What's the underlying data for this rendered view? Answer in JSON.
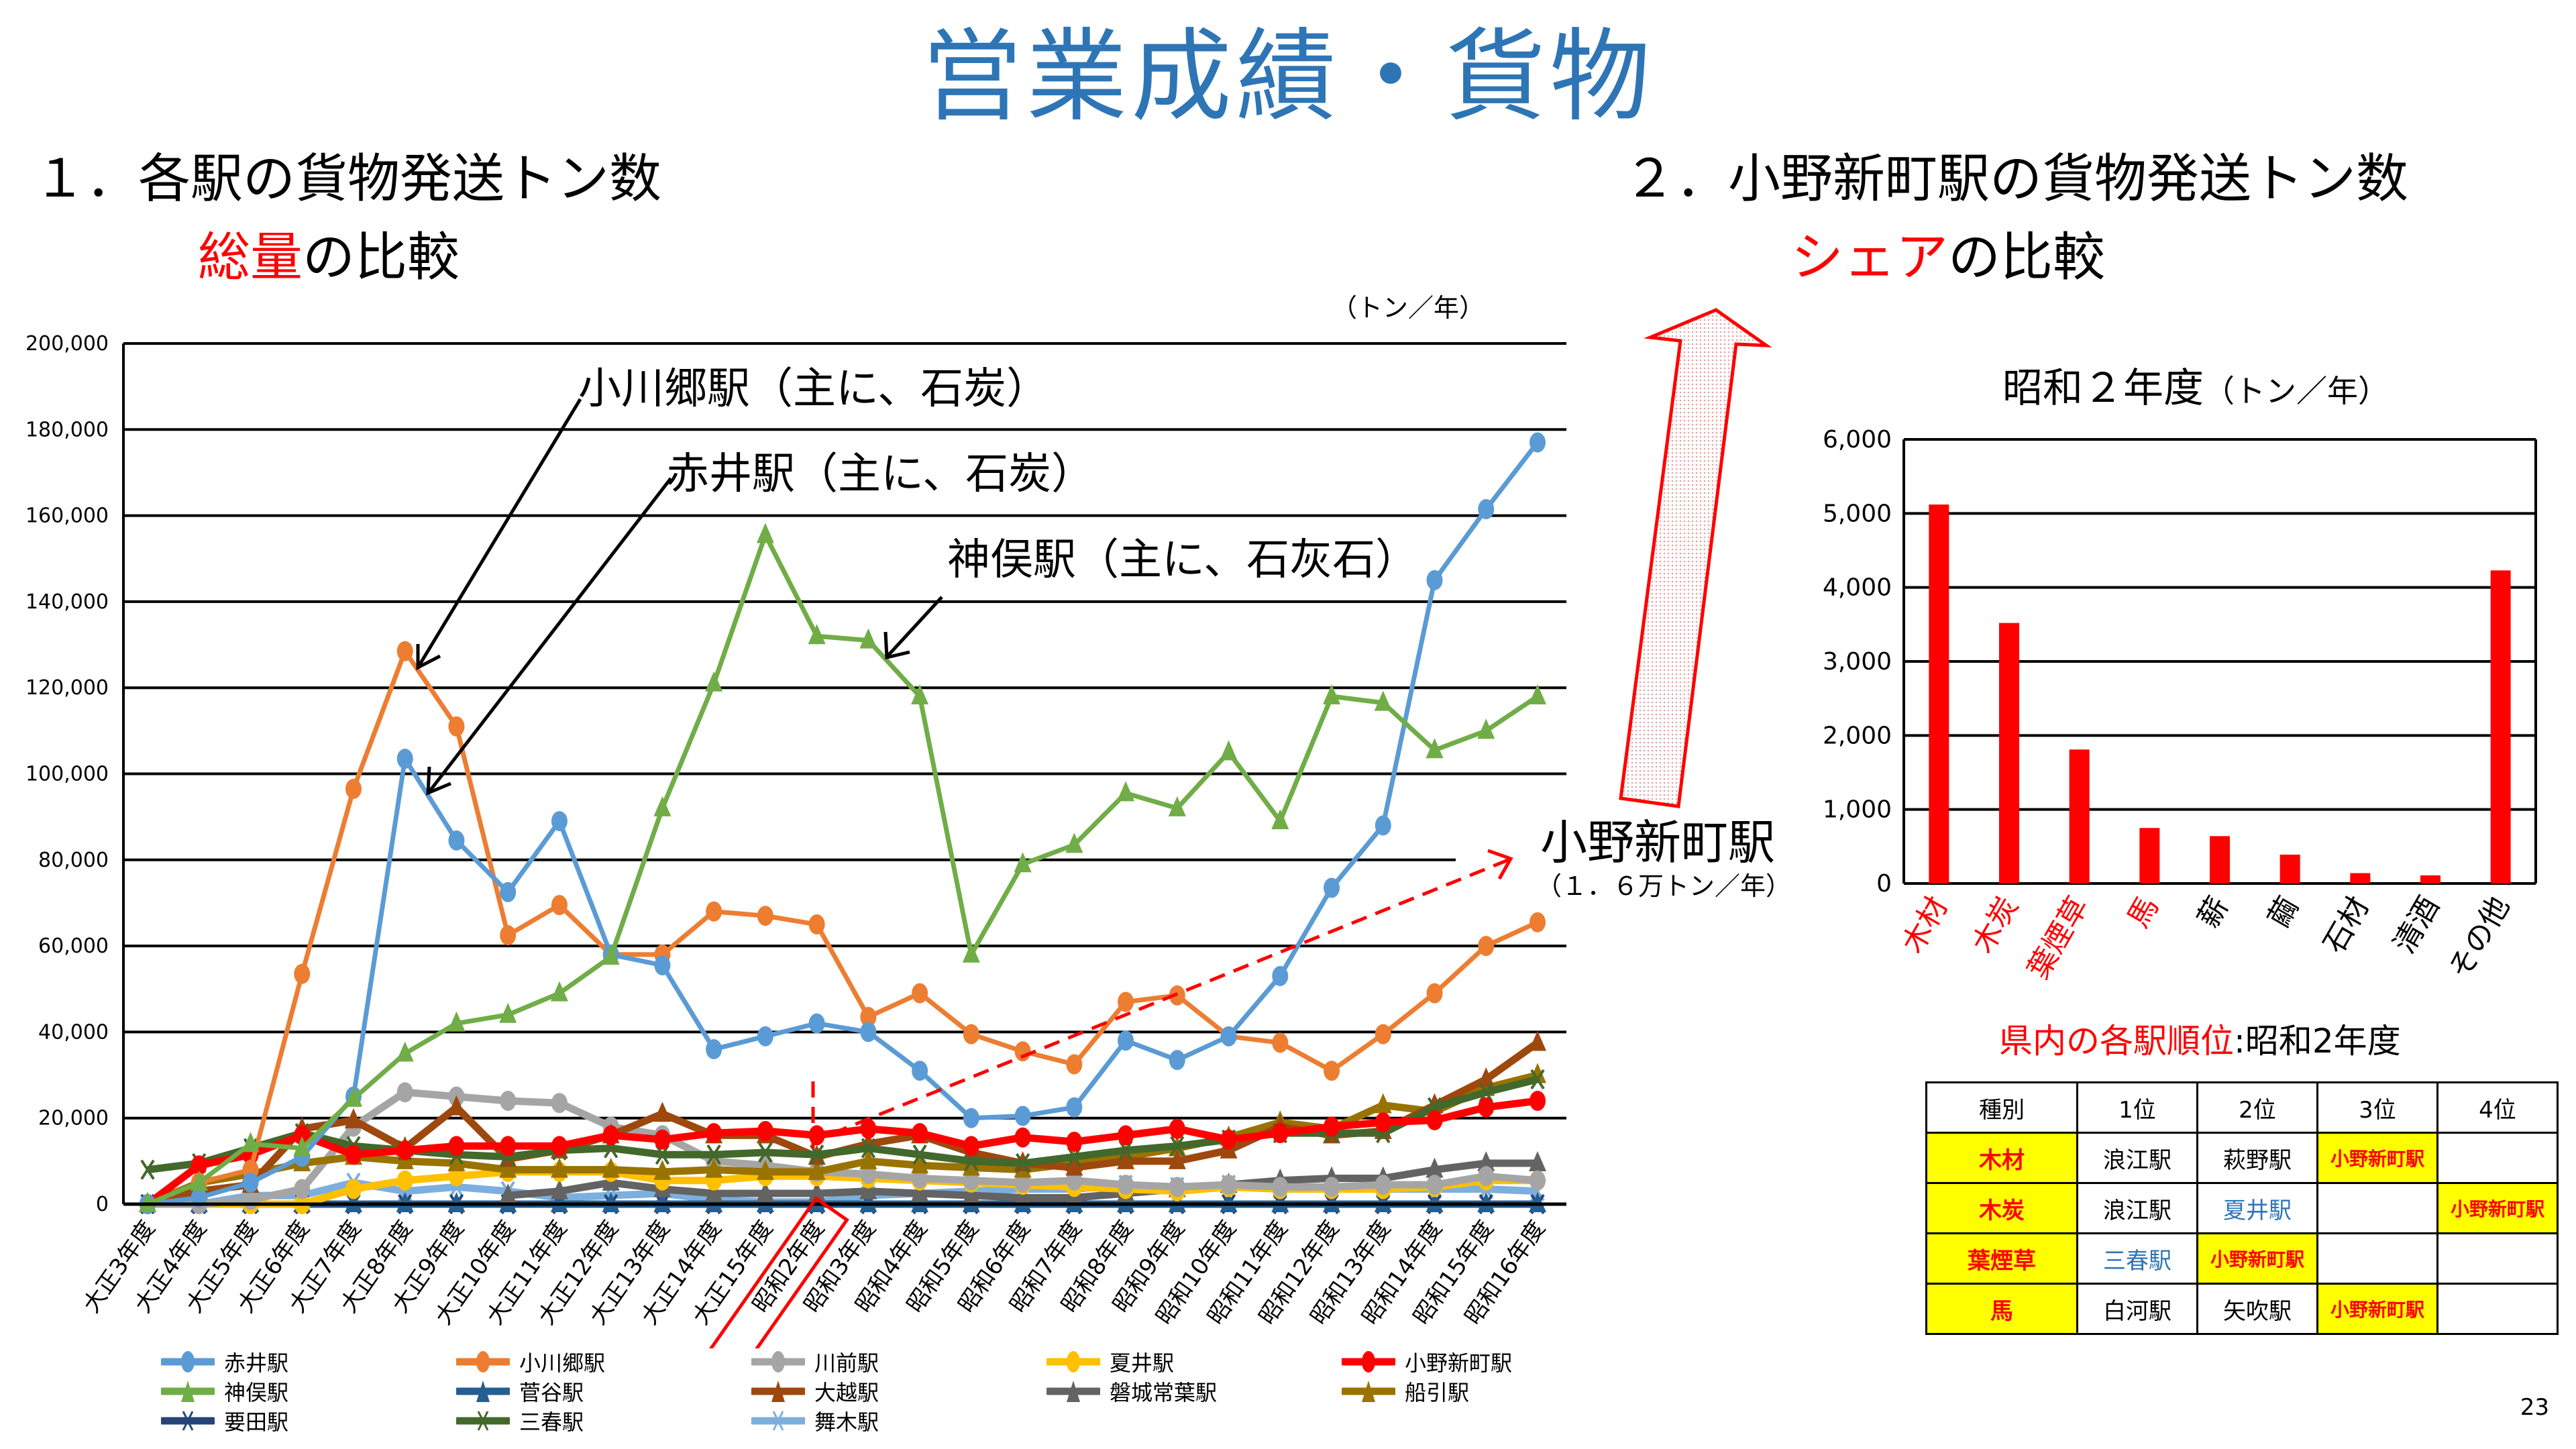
{
  "title": "営業成績・貨物",
  "section1": {
    "number": "１．",
    "line1": "各駅の貨物発送トン数",
    "highlight": "総量",
    "rest": "の比較"
  },
  "section2": {
    "number": "２．",
    "line1": "小野新町駅の貨物発送トン数",
    "highlight": "シェア",
    "rest": "の比較"
  },
  "unit_main": "（トン／年）",
  "annotations": {
    "ogawago": "小川郷駅（主に、石炭）",
    "akai": "赤井駅（主に、石炭）",
    "kanmata": "神俣駅（主に、石灰石）",
    "onoshinmachi": "小野新町駅",
    "onoshinmachi_sub": "（１．６万トン／年）"
  },
  "colors": {
    "title": "#2e75b6",
    "accent": "#ff0000",
    "highlight": "#ffff00"
  },
  "chart_data": [
    {
      "type": "line",
      "title": "各駅の貨物発送トン数",
      "ylabel": "（トン／年）",
      "ylim": [
        0,
        200000
      ],
      "yticks": [
        "0",
        "20,000",
        "40,000",
        "60,000",
        "80,000",
        "100,000",
        "120,000",
        "140,000",
        "160,000",
        "180,000",
        "200,000"
      ],
      "ytick_values": [
        0,
        20000,
        40000,
        60000,
        80000,
        100000,
        120000,
        140000,
        160000,
        180000,
        200000
      ],
      "grid": true,
      "legend": "bottom",
      "highlighted_category": "昭和2年度",
      "categories": [
        "大正3年度",
        "大正4年度",
        "大正5年度",
        "大正6年度",
        "大正7年度",
        "大正8年度",
        "大正9年度",
        "大正10年度",
        "大正11年度",
        "大正12年度",
        "大正13年度",
        "大正14年度",
        "大正15年度",
        "昭和2年度",
        "昭和3年度",
        "昭和4年度",
        "昭和5年度",
        "昭和6年度",
        "昭和7年度",
        "昭和8年度",
        "昭和9年度",
        "昭和10年度",
        "昭和11年度",
        "昭和12年度",
        "昭和13年度",
        "昭和14年度",
        "昭和15年度",
        "昭和16年度"
      ],
      "series": [
        {
          "name": "赤井駅",
          "color": "#5b9bd5",
          "marker": "circle",
          "values": [
            0,
            1500,
            5000,
            11000,
            25000,
            103500,
            84500,
            72500,
            89000,
            58000,
            55500,
            36000,
            39000,
            42000,
            40000,
            31000,
            20000,
            20500,
            22500,
            38000,
            33500,
            39000,
            53000,
            73500,
            88000,
            145000,
            161500,
            177000
          ]
        },
        {
          "name": "小川郷駅",
          "color": "#ed7d31",
          "marker": "circle",
          "values": [
            0,
            5000,
            8000,
            53500,
            96500,
            128500,
            111000,
            62500,
            69500,
            58000,
            58000,
            68000,
            67000,
            65000,
            43500,
            49000,
            39500,
            35500,
            32500,
            47000,
            48500,
            39000,
            37500,
            31000,
            39500,
            49000,
            60000,
            65500
          ]
        },
        {
          "name": "川前駅",
          "color": "#a5a5a5",
          "marker": "circle",
          "values": [
            0,
            0,
            1000,
            3500,
            18000,
            26000,
            25000,
            24000,
            23500,
            18000,
            16000,
            10000,
            9000,
            7500,
            7000,
            6000,
            5500,
            5000,
            5500,
            4500,
            4000,
            4500,
            4000,
            4000,
            4500,
            4500,
            6500,
            5500
          ]
        },
        {
          "name": "夏井駅",
          "color": "#ffc000",
          "marker": "circle",
          "values": [
            0,
            0,
            0,
            0,
            3500,
            5500,
            6500,
            7500,
            7500,
            7500,
            5500,
            5500,
            6500,
            6500,
            6000,
            5500,
            5000,
            4500,
            4000,
            3500,
            3000,
            4000,
            3500,
            3500,
            3500,
            4000,
            5500,
            5500
          ]
        },
        {
          "name": "小野新町駅",
          "color": "#ff0000",
          "marker": "circle",
          "values": [
            0,
            9000,
            11500,
            16000,
            11500,
            12500,
            13500,
            13500,
            13500,
            16000,
            15000,
            16500,
            17000,
            16000,
            17500,
            16500,
            13500,
            15500,
            14500,
            16000,
            17500,
            15000,
            16500,
            18000,
            19000,
            19500,
            22500,
            24000
          ]
        },
        {
          "name": "神俣駅",
          "color": "#70ad47",
          "marker": "triangle",
          "values": [
            0,
            5000,
            14000,
            13000,
            24500,
            35000,
            42000,
            44000,
            49000,
            57500,
            92000,
            121000,
            155500,
            132000,
            131000,
            118000,
            58000,
            79000,
            83500,
            95500,
            92000,
            105000,
            89000,
            118000,
            116500,
            105500,
            110000,
            118000
          ]
        },
        {
          "name": "菅谷駅",
          "color": "#255e91",
          "marker": "triangle",
          "values": [
            0,
            0,
            0,
            0,
            0,
            0,
            0,
            0,
            0,
            0,
            0,
            0,
            0,
            0,
            0,
            0,
            0,
            0,
            0,
            0,
            0,
            0,
            0,
            0,
            0,
            0,
            0,
            0
          ]
        },
        {
          "name": "大越駅",
          "color": "#9e480e",
          "marker": "triangle",
          "values": [
            0,
            3000,
            4500,
            17500,
            19500,
            13000,
            22500,
            10500,
            12500,
            16000,
            21000,
            16000,
            16000,
            11000,
            14000,
            16000,
            12000,
            9500,
            8500,
            10000,
            10000,
            12500,
            18000,
            16000,
            17000,
            23000,
            29000,
            37500
          ]
        },
        {
          "name": "磐城常葉駅",
          "color": "#636363",
          "marker": "triangle",
          "values": [
            null,
            null,
            null,
            null,
            null,
            null,
            null,
            2000,
            3000,
            5000,
            3500,
            2500,
            2500,
            2500,
            3000,
            2500,
            2000,
            1500,
            1500,
            2500,
            3500,
            4500,
            5500,
            6000,
            6000,
            8000,
            9500,
            9500
          ]
        },
        {
          "name": "船引駅",
          "color": "#997300",
          "marker": "triangle",
          "values": [
            0,
            5000,
            7000,
            9500,
            11000,
            10000,
            9500,
            8000,
            8000,
            8000,
            7500,
            8000,
            7500,
            7500,
            10000,
            9000,
            8500,
            8000,
            9500,
            11000,
            13000,
            15500,
            19000,
            17500,
            23000,
            21500,
            27000,
            30000
          ]
        },
        {
          "name": "要田駅",
          "color": "#264478",
          "marker": "x",
          "values": [
            0,
            0,
            0,
            0,
            0,
            0,
            0,
            0,
            0,
            0,
            0,
            0,
            0,
            0,
            0,
            0,
            0,
            0,
            0,
            0,
            0,
            0,
            0,
            0,
            0,
            0,
            0,
            0
          ]
        },
        {
          "name": "三春駅",
          "color": "#43682b",
          "marker": "x",
          "values": [
            8000,
            9500,
            13000,
            16500,
            13500,
            12500,
            11500,
            11000,
            12500,
            13000,
            11500,
            11500,
            12000,
            11500,
            13000,
            11500,
            10000,
            9500,
            11000,
            12500,
            13500,
            15000,
            16500,
            16500,
            16500,
            22500,
            26000,
            29000
          ]
        },
        {
          "name": "舞木駅",
          "color": "#7cafdd",
          "marker": "x",
          "values": [
            0,
            0,
            2000,
            2000,
            5000,
            3000,
            4000,
            3000,
            1500,
            2000,
            2500,
            1000,
            500,
            500,
            2000,
            2500,
            3000,
            3500,
            3500,
            4500,
            4000,
            4500,
            3500,
            4000,
            3500,
            3500,
            3500,
            3000
          ]
        }
      ]
    },
    {
      "type": "bar",
      "title": "昭和２年度",
      "unit": "（トン／年）",
      "ylim": [
        0,
        6000
      ],
      "yticks": [
        "0",
        "1,000",
        "2,000",
        "3,000",
        "4,000",
        "5,000",
        "6,000"
      ],
      "ytick_values": [
        0,
        1000,
        2000,
        3000,
        4000,
        5000,
        6000
      ],
      "grid": true,
      "categories": [
        "木材",
        "木炭",
        "葉煙草",
        "馬",
        "薪",
        "繭",
        "石材",
        "清酒",
        "その他"
      ],
      "highlighted_categories": [
        "木材",
        "木炭",
        "葉煙草",
        "馬"
      ],
      "values": [
        5120,
        3520,
        1810,
        750,
        640,
        390,
        140,
        110,
        4230
      ],
      "bar_color": "#ff0000"
    }
  ],
  "ranking": {
    "title_red": "県内の各駅順位",
    "title_black": ":昭和2年度",
    "headers": [
      "種別",
      "1位",
      "2位",
      "3位",
      "4位"
    ],
    "rows": [
      {
        "category": "木材",
        "cells": [
          "浪江駅",
          "萩野駅",
          "小野新町駅",
          ""
        ]
      },
      {
        "category": "木炭",
        "cells": [
          "浪江駅",
          "夏井駅",
          "",
          "小野新町駅"
        ]
      },
      {
        "category": "葉煙草",
        "cells": [
          "三春駅",
          "小野新町駅",
          "",
          ""
        ]
      },
      {
        "category": "馬",
        "cells": [
          "白河駅",
          "矢吹駅",
          "小野新町駅",
          ""
        ]
      }
    ]
  },
  "page_number": "23"
}
